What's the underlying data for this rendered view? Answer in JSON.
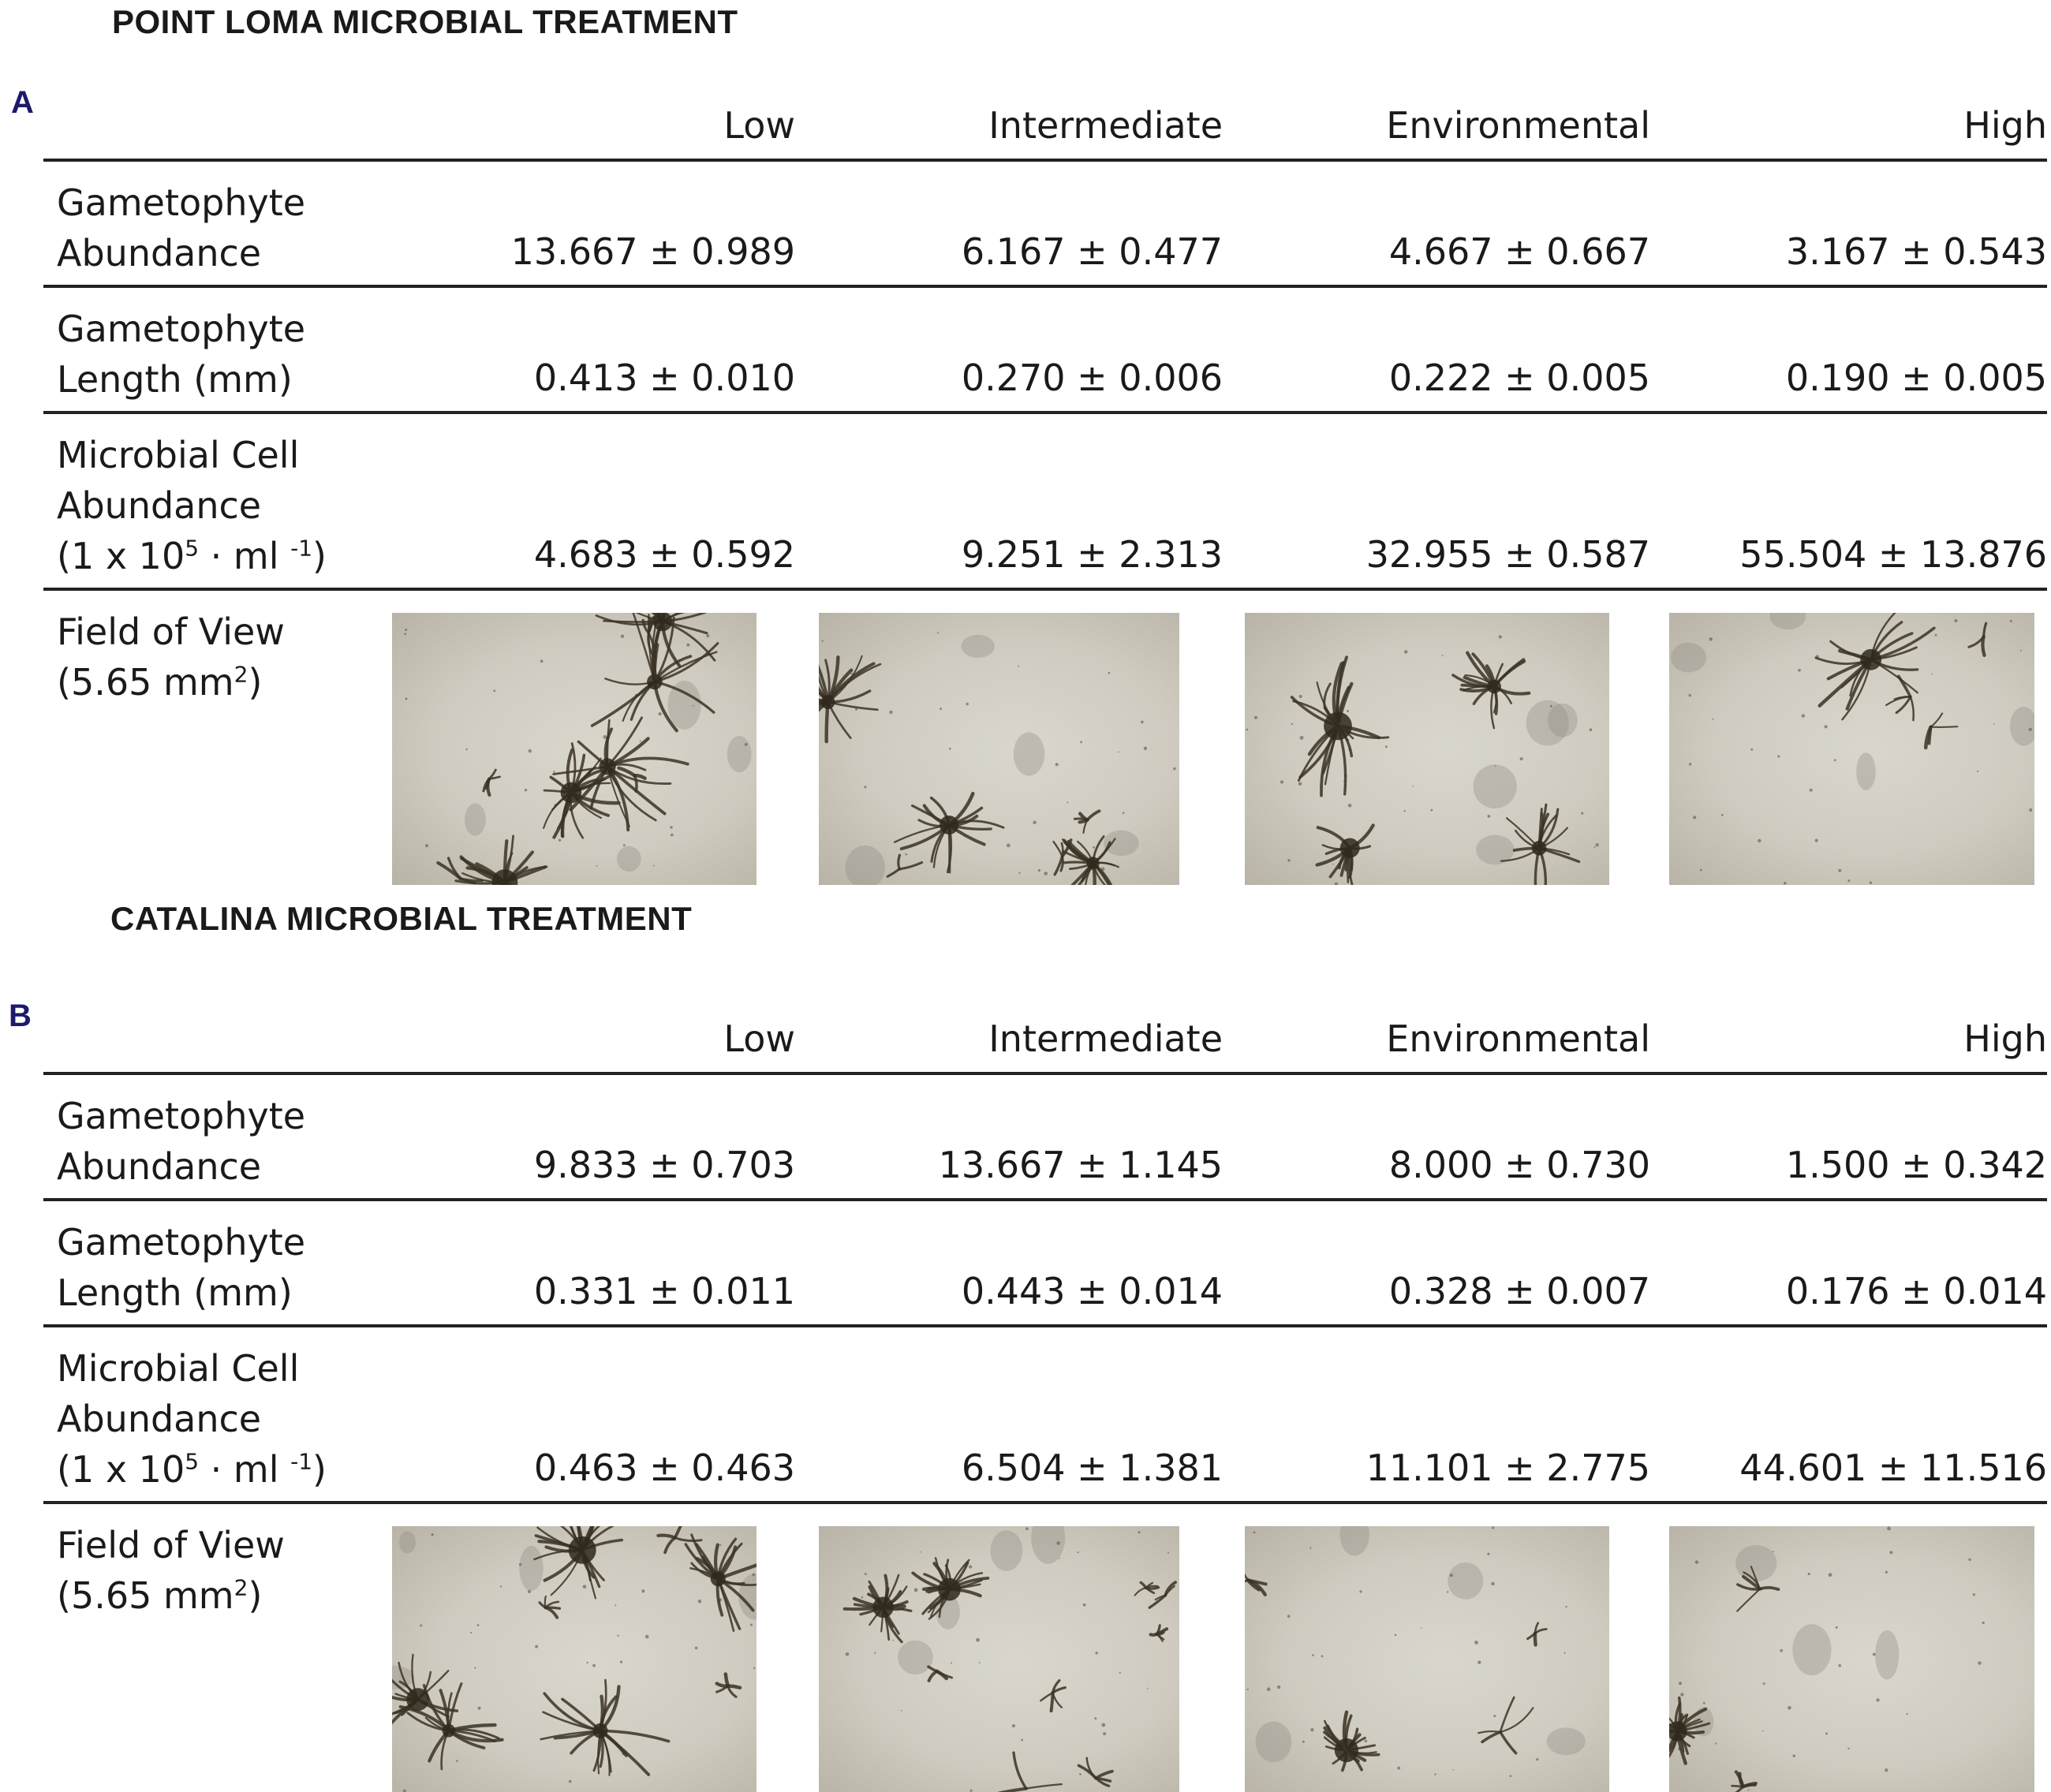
{
  "panels": [
    {
      "letter": "A",
      "title": "POINT LOMA MICROBIAL TREATMENT",
      "columns": [
        "Low",
        "Intermediate",
        "Environmental",
        "High"
      ],
      "rows": [
        {
          "label_lines": [
            "Gametophyte",
            "Abundance"
          ],
          "values": [
            "13.667 ± 0.989",
            "6.167 ± 0.477",
            "4.667 ± 0.667",
            "3.167 ± 0.543"
          ]
        },
        {
          "label_lines": [
            "Gametophyte",
            "Length (mm)"
          ],
          "values": [
            "0.413 ± 0.010",
            "0.270 ± 0.006",
            "0.222 ± 0.005",
            "0.190 ± 0.005"
          ]
        },
        {
          "label_lines": [
            "Microbial Cell",
            "Abundance"
          ],
          "label_unit_prefix": "(1 x 10",
          "label_unit_exp": "5",
          "label_unit_mid": " · ml ",
          "label_unit_exp2": "-1",
          "label_unit_suffix": ")",
          "values": [
            "4.683 ± 0.592",
            "9.251 ± 2.313",
            "32.955 ± 0.587",
            "55.504 ± 13.876"
          ]
        }
      ],
      "fov_label_line1": "Field of View",
      "fov_label_prefix": "(5.65 mm",
      "fov_label_exp": "2",
      "fov_label_suffix": ")"
    },
    {
      "letter": "B",
      "title": "CATALINA MICROBIAL TREATMENT",
      "columns": [
        "Low",
        "Intermediate",
        "Environmental",
        "High"
      ],
      "rows": [
        {
          "label_lines": [
            "Gametophyte",
            "Abundance"
          ],
          "values": [
            "9.833 ± 0.703",
            "13.667 ± 1.145",
            "8.000 ± 0.730",
            "1.500 ± 0.342"
          ]
        },
        {
          "label_lines": [
            "Gametophyte",
            "Length (mm)"
          ],
          "values": [
            "0.331 ± 0.011",
            "0.443 ± 0.014",
            "0.328 ± 0.007",
            "0.176 ± 0.014"
          ]
        },
        {
          "label_lines": [
            "Microbial Cell",
            "Abundance"
          ],
          "label_unit_prefix": "(1 x 10",
          "label_unit_exp": "5",
          "label_unit_mid": " · ml ",
          "label_unit_exp2": "-1",
          "label_unit_suffix": ")",
          "values": [
            "0.463 ± 0.463",
            "6.504 ± 1.381",
            "11.101 ± 2.775",
            "44.601 ± 11.516"
          ]
        }
      ],
      "fov_label_line1": "Field of View",
      "fov_label_prefix": "(5.65 mm",
      "fov_label_exp": "2",
      "fov_label_suffix": ")"
    }
  ],
  "colors": {
    "rule": "#222222",
    "panel_letter": "#1c1a6a",
    "micrograph_bg": "#cfcbc0",
    "gametophyte": "#3b3224"
  }
}
